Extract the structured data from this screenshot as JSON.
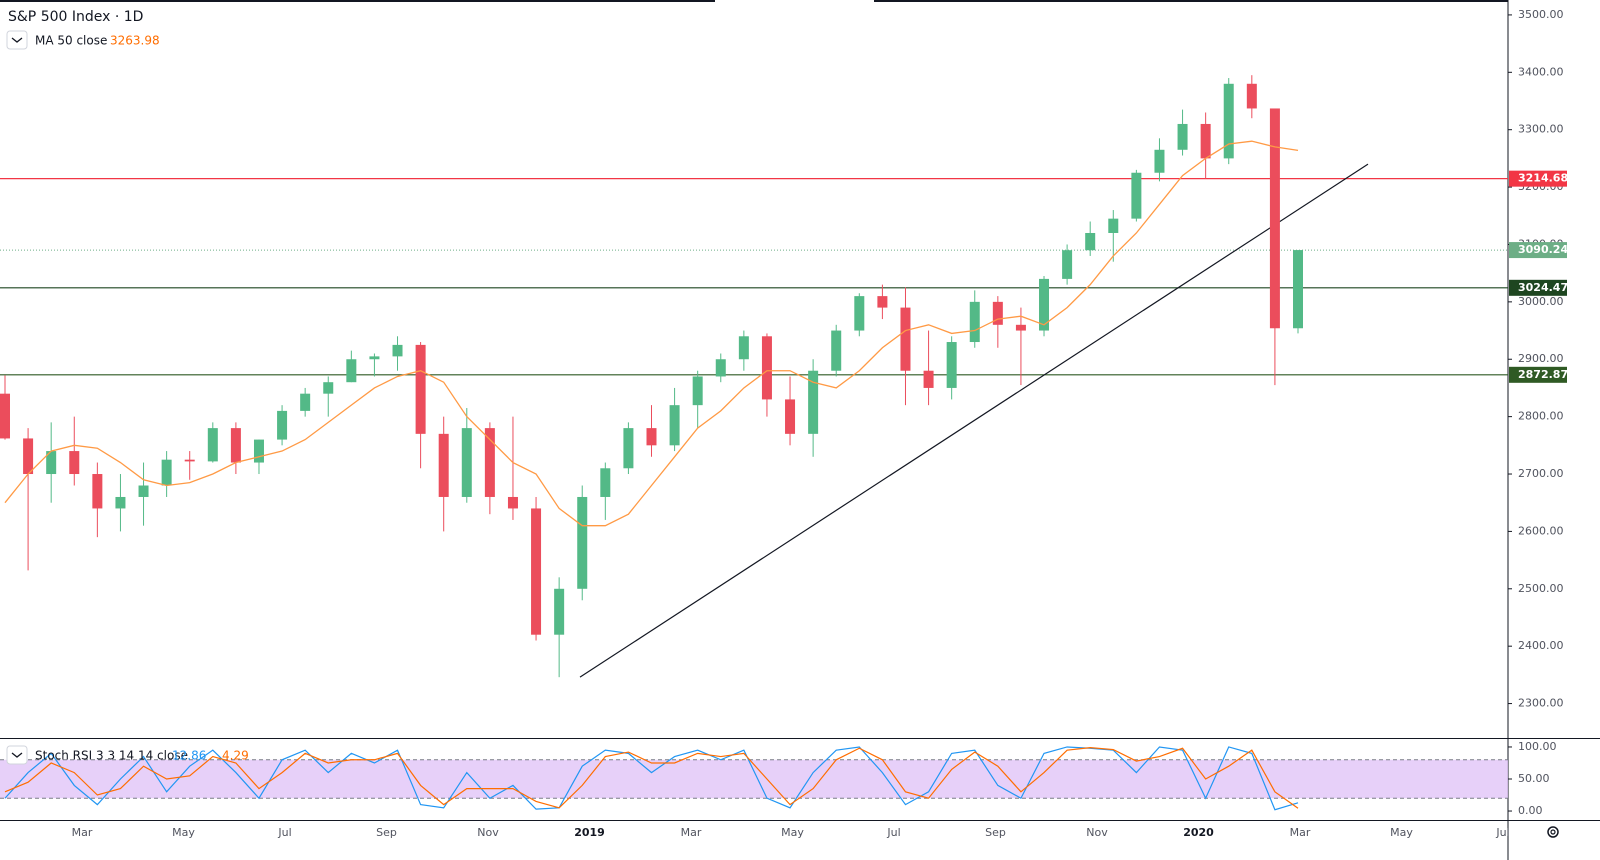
{
  "chart_data": [
    {
      "type": "candlestick",
      "title": "S&P 500 Index · 1D",
      "ylim": [
        2240,
        3526
      ],
      "yticks": [
        {
          "value": 2300,
          "label": "2300.00"
        },
        {
          "value": 2400,
          "label": "2400.00"
        },
        {
          "value": 2500,
          "label": "2500.00"
        },
        {
          "value": 2600,
          "label": "2600.00"
        },
        {
          "value": 2700,
          "label": "2700.00"
        },
        {
          "value": 2800,
          "label": "2800.00"
        },
        {
          "value": 2900,
          "label": "2900.00"
        },
        {
          "value": 3000,
          "label": "3000.00"
        },
        {
          "value": 3100,
          "label": "3100.00"
        },
        {
          "value": 3200,
          "label": "3200.00"
        },
        {
          "value": 3300,
          "label": "3300.00"
        },
        {
          "value": 3400,
          "label": "3400.00"
        },
        {
          "value": 3500,
          "label": "3500.00"
        }
      ],
      "up_color": "#53b987",
      "down_color": "#eb4d5c",
      "candles": [
        [
          2840,
          2872,
          2760,
          2762
        ],
        [
          2762,
          2780,
          2532,
          2700
        ],
        [
          2700,
          2790,
          2650,
          2740
        ],
        [
          2740,
          2800,
          2680,
          2700
        ],
        [
          2700,
          2720,
          2590,
          2640
        ],
        [
          2640,
          2700,
          2600,
          2660
        ],
        [
          2660,
          2720,
          2610,
          2680
        ],
        [
          2680,
          2740,
          2660,
          2725
        ],
        [
          2725,
          2740,
          2690,
          2722
        ],
        [
          2722,
          2790,
          2720,
          2780
        ],
        [
          2780,
          2790,
          2700,
          2720
        ],
        [
          2720,
          2760,
          2700,
          2760
        ],
        [
          2760,
          2820,
          2750,
          2810
        ],
        [
          2810,
          2850,
          2800,
          2840
        ],
        [
          2840,
          2870,
          2800,
          2860
        ],
        [
          2860,
          2915,
          2860,
          2900
        ],
        [
          2900,
          2910,
          2870,
          2905
        ],
        [
          2905,
          2940,
          2880,
          2925
        ],
        [
          2925,
          2930,
          2710,
          2770
        ],
        [
          2770,
          2800,
          2600,
          2660
        ],
        [
          2660,
          2815,
          2650,
          2780
        ],
        [
          2780,
          2790,
          2630,
          2660
        ],
        [
          2660,
          2800,
          2620,
          2640
        ],
        [
          2640,
          2660,
          2410,
          2420
        ],
        [
          2420,
          2520,
          2346,
          2500
        ],
        [
          2500,
          2680,
          2480,
          2660
        ],
        [
          2660,
          2720,
          2620,
          2710
        ],
        [
          2710,
          2790,
          2700,
          2780
        ],
        [
          2780,
          2820,
          2730,
          2750
        ],
        [
          2750,
          2850,
          2740,
          2820
        ],
        [
          2820,
          2880,
          2780,
          2870
        ],
        [
          2870,
          2910,
          2860,
          2900
        ],
        [
          2900,
          2950,
          2880,
          2940
        ],
        [
          2940,
          2945,
          2800,
          2830
        ],
        [
          2830,
          2870,
          2750,
          2770
        ],
        [
          2770,
          2900,
          2730,
          2880
        ],
        [
          2880,
          2960,
          2870,
          2950
        ],
        [
          2950,
          3015,
          2940,
          3010
        ],
        [
          3010,
          3030,
          2970,
          2990
        ],
        [
          2990,
          3025,
          2820,
          2880
        ],
        [
          2880,
          2950,
          2820,
          2850
        ],
        [
          2850,
          2940,
          2830,
          2930
        ],
        [
          2930,
          3020,
          2920,
          3000
        ],
        [
          3000,
          3010,
          2920,
          2960
        ],
        [
          2960,
          2990,
          2855,
          2950
        ],
        [
          2950,
          3045,
          2940,
          3040
        ],
        [
          3040,
          3100,
          3030,
          3090
        ],
        [
          3090,
          3140,
          3080,
          3120
        ],
        [
          3120,
          3160,
          3070,
          3145
        ],
        [
          3145,
          3230,
          3140,
          3225
        ],
        [
          3225,
          3285,
          3210,
          3265
        ],
        [
          3265,
          3335,
          3255,
          3310
        ],
        [
          3310,
          3330,
          3215,
          3250
        ],
        [
          3250,
          3390,
          3240,
          3380
        ],
        [
          3380,
          3395,
          3320,
          3337
        ],
        [
          3337,
          3337,
          2855,
          2954
        ],
        [
          2954,
          3090,
          2945,
          3090.24
        ]
      ],
      "series": [
        {
          "name": "MA 50 close",
          "color": "#ff9a45",
          "values": [
            2650,
            2700,
            2740,
            2750,
            2745,
            2720,
            2690,
            2680,
            2685,
            2700,
            2720,
            2730,
            2740,
            2760,
            2790,
            2820,
            2850,
            2870,
            2880,
            2860,
            2800,
            2760,
            2720,
            2700,
            2640,
            2610,
            2610,
            2630,
            2680,
            2730,
            2780,
            2810,
            2850,
            2880,
            2880,
            2860,
            2850,
            2880,
            2920,
            2950,
            2960,
            2945,
            2950,
            2970,
            2975,
            2960,
            2990,
            3030,
            3080,
            3120,
            3170,
            3220,
            3250,
            3275,
            3280,
            3270,
            3263.98
          ]
        }
      ],
      "levels": [
        {
          "value": 3214.68,
          "color": "#f23645",
          "style": "solid"
        },
        {
          "value": 3090.24,
          "color": "#6dae86",
          "style": "dotted"
        },
        {
          "value": 3024.47,
          "color": "#1e4620",
          "style": "solid"
        },
        {
          "value": 2872.87,
          "color": "#2f5a24",
          "style": "solid"
        }
      ],
      "trendline": [
        2346,
        3240
      ]
    },
    {
      "type": "stoch",
      "title": "Stoch RSI 3 3 14 14 close",
      "ylim": [
        -14,
        114
      ],
      "yticks": [
        {
          "value": 0,
          "label": "0.00"
        },
        {
          "value": 50,
          "label": "50.00"
        },
        {
          "value": 100,
          "label": "100.00"
        }
      ],
      "bands": [
        20,
        80
      ],
      "band_color": "#e1c4f7",
      "series": [
        {
          "name": "K",
          "color": "#2196f3",
          "values": [
            20,
            60,
            90,
            40,
            10,
            50,
            85,
            30,
            70,
            95,
            60,
            20,
            80,
            95,
            60,
            90,
            75,
            95,
            10,
            5,
            60,
            20,
            40,
            3,
            5,
            70,
            95,
            90,
            60,
            85,
            95,
            80,
            95,
            20,
            5,
            60,
            95,
            100,
            60,
            10,
            30,
            90,
            95,
            40,
            20,
            90,
            100,
            98,
            95,
            60,
            100,
            95,
            20,
            100,
            90,
            2,
            12.86
          ]
        },
        {
          "name": "D",
          "color": "#ff6d00",
          "values": [
            30,
            45,
            75,
            60,
            25,
            35,
            70,
            50,
            55,
            85,
            75,
            35,
            60,
            90,
            75,
            80,
            80,
            90,
            40,
            10,
            35,
            35,
            35,
            15,
            5,
            40,
            85,
            92,
            75,
            75,
            90,
            85,
            90,
            50,
            10,
            35,
            80,
            98,
            80,
            30,
            20,
            65,
            92,
            70,
            30,
            60,
            95,
            99,
            96,
            78,
            85,
            98,
            50,
            70,
            95,
            30,
            4.29
          ]
        }
      ],
      "x_labels": [
        "Mar",
        "May",
        "Jul",
        "Sep",
        "Nov",
        "2019",
        "Mar",
        "May",
        "Jul",
        "Sep",
        "Nov",
        "2020",
        "Mar",
        "May",
        "Jul"
      ]
    }
  ]
}
